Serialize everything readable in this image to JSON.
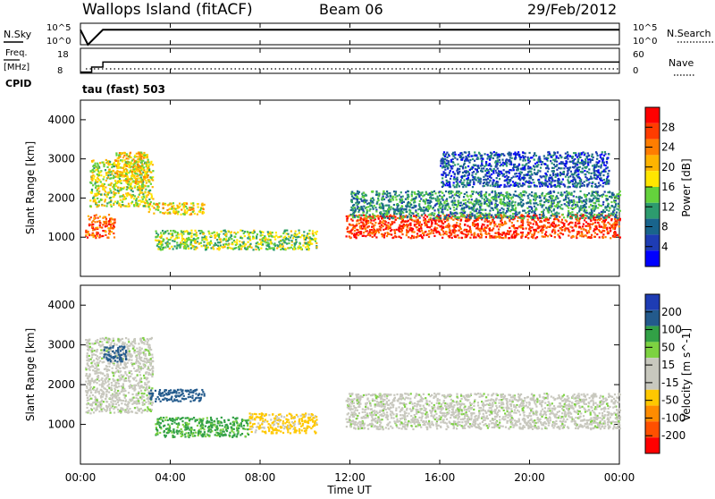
{
  "header": {
    "title": "Wallops Island (fitACF)",
    "beam": "Beam 06",
    "date": "29/Feb/2012"
  },
  "noise_panel": {
    "left_label": "N.Sky",
    "left_ticks": [
      "10^5",
      "10^0"
    ],
    "right_label": "N.Search",
    "right_ticks": [
      "10^5",
      "10^0"
    ]
  },
  "freq_panel": {
    "left_label_top": "Freq.",
    "left_label_unit": "[MHz]",
    "left_ticks": [
      "18",
      "8"
    ],
    "right_label": "Nave",
    "right_ticks": [
      "60",
      "0"
    ],
    "cpid_label": "CPID",
    "cpid_value": "tau (fast) 503"
  },
  "power_panel": {
    "ylabel": "Slant Range [km]",
    "colorbar_label": "Power [dB]",
    "colorbar_ticks": [
      "28",
      "24",
      "20",
      "16",
      "12",
      "8",
      "4"
    ],
    "colorbar_colors": [
      "#ff0000",
      "#ff3c00",
      "#ff7d00",
      "#ffb400",
      "#ffe600",
      "#64d23c",
      "#2d9b6e",
      "#19648c",
      "#1e3cb4",
      "#0000ff"
    ]
  },
  "velocity_panel": {
    "ylabel": "Slant Range [km]",
    "colorbar_label": "Velocity [m s^-1]",
    "colorbar_ticks": [
      "200",
      "100",
      "50",
      "15",
      "-15",
      "-50",
      "-100",
      "-200"
    ],
    "colorbar_colors": [
      "#1e3cb4",
      "#235a8c",
      "#32a046",
      "#7dd241",
      "#c8c8be",
      "#c8c8be",
      "#ffc800",
      "#ff8c00",
      "#ff5000",
      "#ff0000"
    ]
  },
  "xaxis": {
    "label": "Time UT",
    "ticks": [
      "00:00",
      "04:00",
      "08:00",
      "12:00",
      "16:00",
      "20:00",
      "00:00"
    ]
  },
  "chart_data": [
    {
      "type": "line",
      "name": "noise",
      "ylabel": "N.Sky",
      "scale": "log",
      "ylim": [
        1,
        100000
      ],
      "x": [
        "00:00",
        "00:20",
        "01:00",
        "04:00",
        "08:00",
        "12:00",
        "16:00",
        "20:00",
        "24:00"
      ],
      "values": [
        3000,
        1,
        3000,
        3000,
        3000,
        3000,
        3000,
        3000,
        3000
      ]
    },
    {
      "type": "line",
      "name": "frequency",
      "ylabel": "Freq. [MHz]",
      "ylim": [
        8,
        18
      ],
      "x": [
        "00:00",
        "00:30",
        "01:00",
        "24:00"
      ],
      "values": [
        8.5,
        10.5,
        12.5,
        12.5
      ]
    },
    {
      "type": "heatmap",
      "name": "power",
      "ylabel": "Slant Range [km]",
      "colorbar": "Power [dB]",
      "ylim": [
        0,
        4500
      ],
      "xlim": [
        "00:00",
        "24:00"
      ],
      "colorbar_ticks": [
        28,
        24,
        20,
        16,
        12,
        8,
        4
      ],
      "regions": [
        {
          "t0": 0.2,
          "t1": 1.5,
          "r0": 1000,
          "r1": 1600,
          "db": 24
        },
        {
          "t0": 0.4,
          "t1": 3.2,
          "r0": 1800,
          "r1": 3000,
          "db": 16
        },
        {
          "t0": 1.5,
          "t1": 3.0,
          "r0": 2400,
          "r1": 3200,
          "db": 18
        },
        {
          "t0": 3.0,
          "t1": 5.5,
          "r0": 1600,
          "r1": 1900,
          "db": 18
        },
        {
          "t0": 3.3,
          "t1": 10.5,
          "r0": 700,
          "r1": 1200,
          "db": 14
        },
        {
          "t0": 11.8,
          "t1": 24.0,
          "r0": 1000,
          "r1": 1600,
          "db": 26
        },
        {
          "t0": 12.0,
          "t1": 24.0,
          "r0": 1500,
          "r1": 2200,
          "db": 10
        },
        {
          "t0": 16.0,
          "t1": 23.5,
          "r0": 2300,
          "r1": 3200,
          "db": 6
        }
      ]
    },
    {
      "type": "heatmap",
      "name": "velocity",
      "ylabel": "Slant Range [km]",
      "colorbar": "Velocity [m s^-1]",
      "ylim": [
        0,
        4500
      ],
      "xlim": [
        "00:00",
        "24:00"
      ],
      "colorbar_ticks": [
        200,
        100,
        50,
        15,
        -15,
        -50,
        -100,
        -200
      ],
      "regions": [
        {
          "t0": 0.2,
          "t1": 3.2,
          "r0": 1300,
          "r1": 3200,
          "v": 0
        },
        {
          "t0": 1.0,
          "t1": 2.0,
          "r0": 2600,
          "r1": 3000,
          "v": 150
        },
        {
          "t0": 3.0,
          "t1": 5.5,
          "r0": 1600,
          "r1": 1900,
          "v": 120
        },
        {
          "t0": 3.3,
          "t1": 7.5,
          "r0": 700,
          "r1": 1200,
          "v": 60
        },
        {
          "t0": 7.5,
          "t1": 10.5,
          "r0": 800,
          "r1": 1300,
          "v": -60
        },
        {
          "t0": 11.8,
          "t1": 24.0,
          "r0": 900,
          "r1": 1800,
          "v": 0
        }
      ]
    }
  ]
}
